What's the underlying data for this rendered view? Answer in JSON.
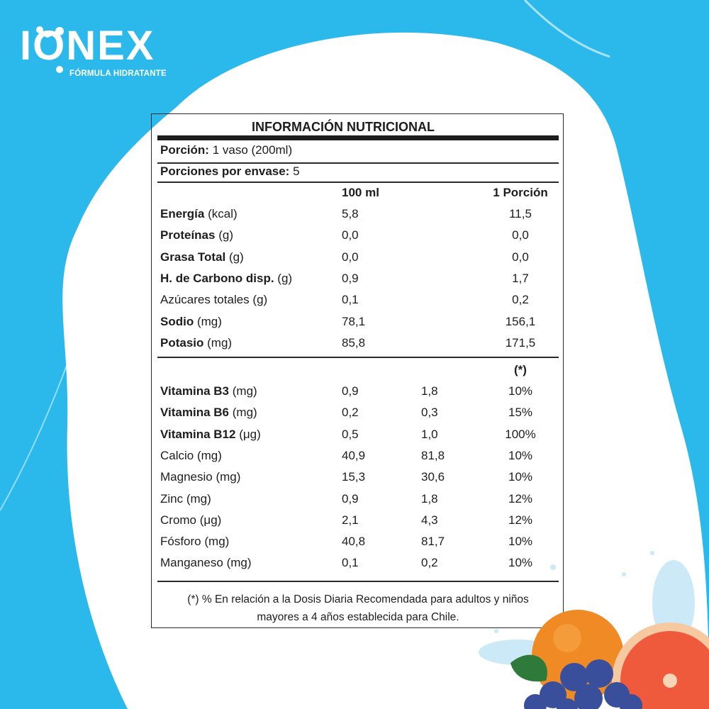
{
  "brand": {
    "name": "IONEX",
    "tagline": "FÓRMULA HIDRATANTE"
  },
  "panel": {
    "title": "INFORMACIÓN NUTRICIONAL",
    "portion_label": "Porción:",
    "portion_value": "1 vaso (200ml)",
    "portions_label": "Porciones por envase:",
    "portions_value": "5",
    "col_header_100ml": "100 ml",
    "col_header_portion": "1 Porción",
    "col_header_dd": "(*)",
    "nutrients": [
      {
        "name": "Energía",
        "unit": "(kcal)",
        "bold": true,
        "v100": "5,8",
        "vportion": "11,5"
      },
      {
        "name": "Proteínas",
        "unit": "(g)",
        "bold": true,
        "v100": "0,0",
        "vportion": "0,0"
      },
      {
        "name": "Grasa Total",
        "unit": "(g)",
        "bold": true,
        "v100": "0,0",
        "vportion": "0,0"
      },
      {
        "name": "H. de Carbono disp.",
        "unit": "(g)",
        "bold": true,
        "v100": "0,9",
        "vportion": "1,7"
      },
      {
        "name": "Azúcares totales",
        "unit": "(g)",
        "bold": false,
        "v100": "0,1",
        "vportion": "0,2"
      },
      {
        "name": "Sodio",
        "unit": "(mg)",
        "bold": true,
        "v100": "78,1",
        "vportion": "156,1"
      },
      {
        "name": "Potasio",
        "unit": "(mg)",
        "bold": true,
        "v100": "85,8",
        "vportion": "171,5"
      }
    ],
    "vitamins": [
      {
        "name": "Vitamina B3",
        "unit": "(mg)",
        "bold": true,
        "v100": "0,9",
        "vportion": "1,8",
        "dd": "10%"
      },
      {
        "name": "Vitamina B6",
        "unit": "(mg)",
        "bold": true,
        "v100": "0,2",
        "vportion": "0,3",
        "dd": "15%"
      },
      {
        "name": "Vitamina B12",
        "unit": "(μg)",
        "bold": true,
        "v100": "0,5",
        "vportion": "1,0",
        "dd": "100%"
      },
      {
        "name": "Calcio",
        "unit": "(mg)",
        "bold": false,
        "v100": "40,9",
        "vportion": "81,8",
        "dd": "10%"
      },
      {
        "name": "Magnesio",
        "unit": "(mg)",
        "bold": false,
        "v100": "15,3",
        "vportion": "30,6",
        "dd": "10%"
      },
      {
        "name": "Zinc",
        "unit": "(mg)",
        "bold": false,
        "v100": "0,9",
        "vportion": "1,8",
        "dd": "12%"
      },
      {
        "name": "Cromo",
        "unit": "(μg)",
        "bold": false,
        "v100": "2,1",
        "vportion": "4,3",
        "dd": "12%"
      },
      {
        "name": "Fósforo",
        "unit": "(mg)",
        "bold": false,
        "v100": "40,8",
        "vportion": "81,7",
        "dd": "10%"
      },
      {
        "name": "Manganeso",
        "unit": "(mg)",
        "bold": false,
        "v100": "0,1",
        "vportion": "0,2",
        "dd": "10%"
      }
    ],
    "footnote_line1": "(*)  % En relación a la Dosis Diaria Recomendada para adultos y niños",
    "footnote_line2": "mayores a 4 años establecida para Chile."
  },
  "colors": {
    "background": "#2bb9ec",
    "blob": "#ffffff",
    "text": "#1d1d1d"
  }
}
